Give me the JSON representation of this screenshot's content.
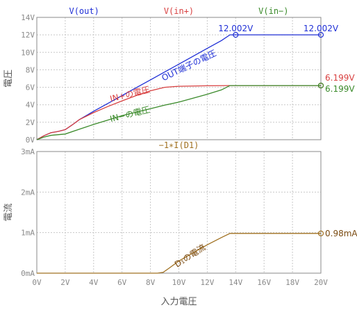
{
  "chart_data": [
    {
      "type": "line",
      "name": "voltage-panel",
      "ylabel": "電圧",
      "xlim": [
        0,
        20
      ],
      "ylim": [
        0,
        14
      ],
      "x_ticks": [
        "0V",
        "2V",
        "4V",
        "6V",
        "8V",
        "10V",
        "12V",
        "14V",
        "16V",
        "18V",
        "20V"
      ],
      "y_ticks": [
        "0V",
        "2V",
        "4V",
        "6V",
        "8V",
        "10V",
        "12V",
        "14V"
      ],
      "grid": true,
      "series": [
        {
          "name": "V(out)",
          "color": "#1f2fd6",
          "points": [
            [
              0,
              0
            ],
            [
              0.5,
              0.45
            ],
            [
              1,
              0.8
            ],
            [
              1.5,
              0.95
            ],
            [
              2,
              1.15
            ],
            [
              2.5,
              1.7
            ],
            [
              3,
              2.3
            ],
            [
              4,
              3.25
            ],
            [
              5,
              4.15
            ],
            [
              6,
              5.05
            ],
            [
              7,
              5.95
            ],
            [
              8,
              6.85
            ],
            [
              9,
              7.75
            ],
            [
              10,
              8.65
            ],
            [
              11,
              9.55
            ],
            [
              12,
              10.45
            ],
            [
              13,
              11.35
            ],
            [
              13.6,
              12.002
            ],
            [
              20,
              12.002
            ]
          ],
          "marker_points": [
            [
              14,
              12.002
            ],
            [
              20,
              12.002
            ]
          ]
        },
        {
          "name": "V(in+)",
          "color": "#d84040",
          "points": [
            [
              0,
              0
            ],
            [
              0.5,
              0.45
            ],
            [
              1,
              0.8
            ],
            [
              1.5,
              0.95
            ],
            [
              2,
              1.15
            ],
            [
              2.5,
              1.7
            ],
            [
              3,
              2.3
            ],
            [
              4,
              3.1
            ],
            [
              5,
              3.8
            ],
            [
              6,
              4.45
            ],
            [
              7,
              5.05
            ],
            [
              8,
              5.6
            ],
            [
              9,
              6.0
            ],
            [
              10,
              6.12
            ],
            [
              12,
              6.17
            ],
            [
              13.6,
              6.199
            ],
            [
              20,
              6.199
            ]
          ],
          "marker_points": [
            [
              20,
              6.199
            ]
          ]
        },
        {
          "name": "V(in−)",
          "color": "#3a8a2a",
          "points": [
            [
              0,
              0
            ],
            [
              0.5,
              0.3
            ],
            [
              1,
              0.5
            ],
            [
              2,
              0.65
            ],
            [
              3,
              1.2
            ],
            [
              4,
              1.75
            ],
            [
              5,
              2.25
            ],
            [
              6,
              2.75
            ],
            [
              7,
              3.15
            ],
            [
              8,
              3.55
            ],
            [
              9,
              3.95
            ],
            [
              10,
              4.3
            ],
            [
              11,
              4.75
            ],
            [
              12,
              5.2
            ],
            [
              13,
              5.7
            ],
            [
              13.6,
              6.199
            ],
            [
              20,
              6.199
            ]
          ],
          "marker_points": [
            [
              20,
              6.199
            ]
          ]
        }
      ],
      "annotations": [
        {
          "text": "OUT端子の電圧",
          "x": 10.8,
          "y": 8.2,
          "angle": -26,
          "color": "#1f2fd6"
        },
        {
          "text": "IN+の電圧",
          "x": 6.6,
          "y": 4.9,
          "angle": -14,
          "color": "#d84040"
        },
        {
          "text": "IN−の電圧",
          "x": 6.6,
          "y": 2.6,
          "angle": -14,
          "color": "#3a8a2a"
        }
      ],
      "value_labels": [
        {
          "text": "12.002V",
          "x": 14,
          "y": 12.002,
          "color": "#1f2fd6",
          "anchor": "middle",
          "dy": -5
        },
        {
          "text": "12.002V",
          "x": 20,
          "y": 12.002,
          "color": "#1f2fd6",
          "anchor": "middle",
          "dy": -5
        },
        {
          "text": "6.199V",
          "x": 20,
          "y": 6.199,
          "color": "#d84040",
          "anchor": "start",
          "dy": -7
        },
        {
          "text": "6.199V",
          "x": 20,
          "y": 6.199,
          "color": "#3a8a2a",
          "anchor": "start",
          "dy": 9
        }
      ]
    },
    {
      "type": "line",
      "name": "current-panel",
      "ylabel": "電流",
      "xlabel": "入力電圧",
      "xlim": [
        0,
        20
      ],
      "ylim": [
        0,
        3
      ],
      "x_ticks": [
        "0V",
        "2V",
        "4V",
        "6V",
        "8V",
        "10V",
        "12V",
        "14V",
        "16V",
        "18V",
        "20V"
      ],
      "y_ticks": [
        "0mA",
        "1mA",
        "2mA",
        "3mA"
      ],
      "grid": true,
      "series": [
        {
          "name": "−1∗I(D1)",
          "color": "#a07020",
          "points": [
            [
              0,
              0
            ],
            [
              8.5,
              0
            ],
            [
              8.9,
              0.02
            ],
            [
              9.3,
              0.12
            ],
            [
              10,
              0.3
            ],
            [
              11,
              0.5
            ],
            [
              12,
              0.7
            ],
            [
              13,
              0.88
            ],
            [
              13.6,
              0.98
            ],
            [
              20,
              0.98
            ]
          ],
          "marker_points": [
            [
              20,
              0.98
            ]
          ]
        }
      ],
      "annotations": [
        {
          "text": "D₁の電流",
          "x": 10.9,
          "y": 0.37,
          "angle": -33,
          "color": "#7a4a10"
        }
      ],
      "value_labels": [
        {
          "text": "0.98mA",
          "x": 20,
          "y": 0.98,
          "color": "#7a4a10",
          "anchor": "start",
          "dy": 4
        }
      ]
    }
  ]
}
